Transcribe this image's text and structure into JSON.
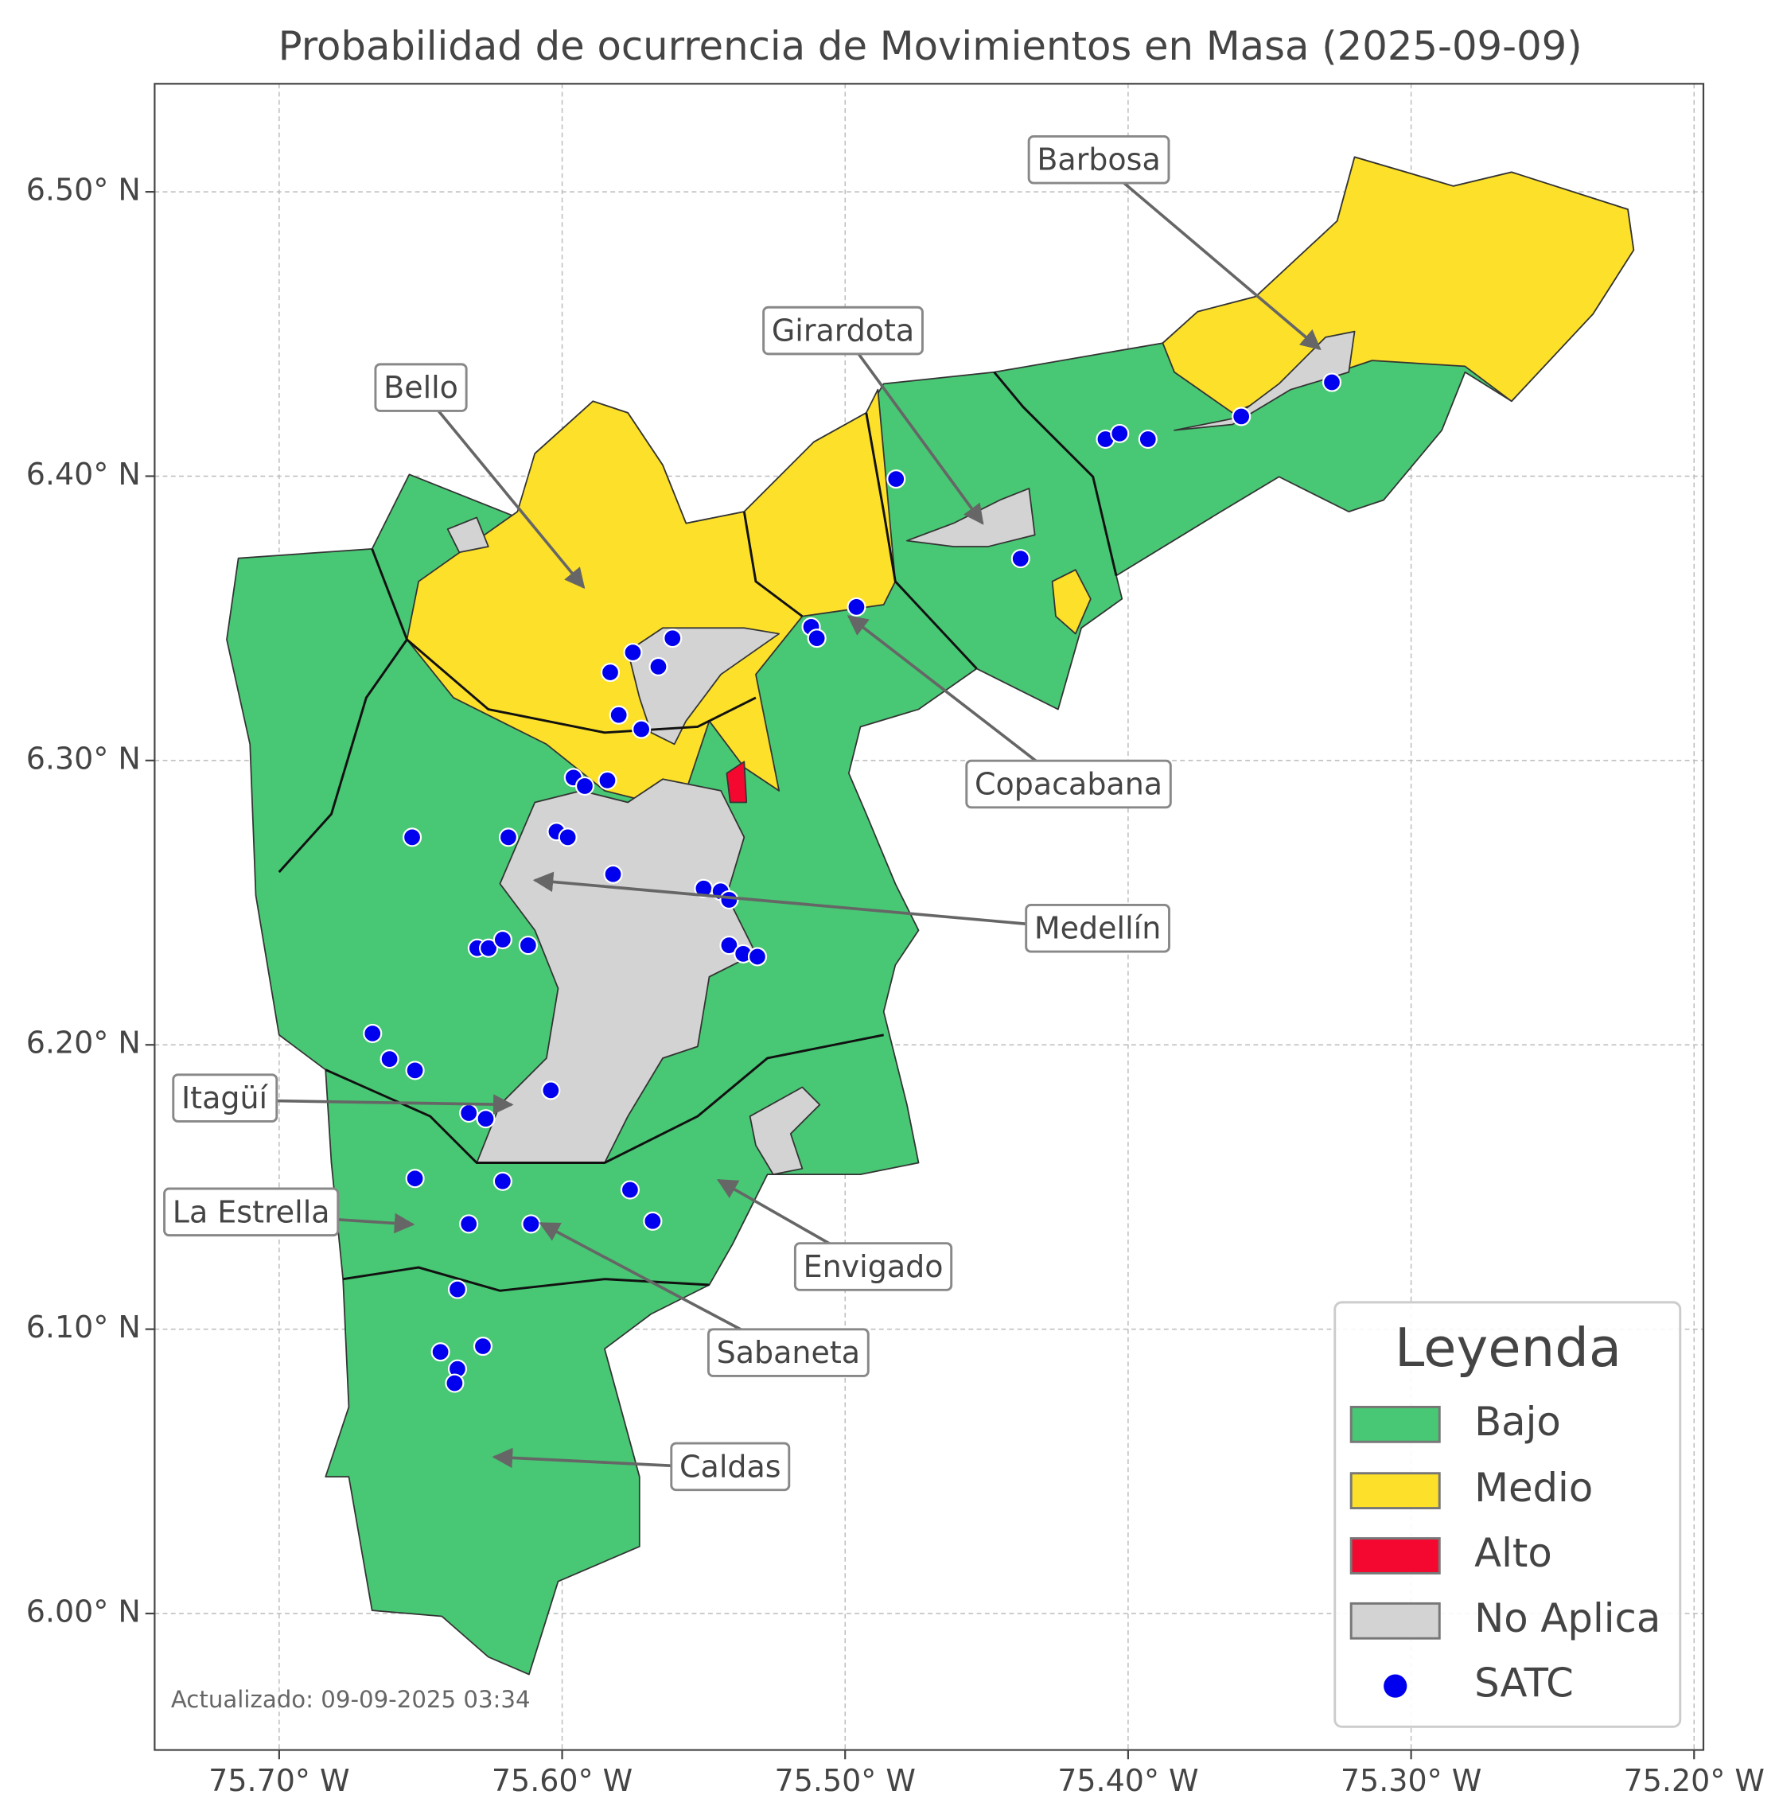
{
  "chart_data": {
    "type": "map",
    "title": "Probabilidad de ocurrencia de Movimientos en Masa (2025-09-09)",
    "xlim": [
      -75.744,
      -75.1967
    ],
    "ylim": [
      5.952,
      6.538
    ],
    "xticks": [
      {
        "value": -75.7,
        "label": "75.70° W"
      },
      {
        "value": -75.6,
        "label": "75.60° W"
      },
      {
        "value": -75.5,
        "label": "75.50° W"
      },
      {
        "value": -75.4,
        "label": "75.40° W"
      },
      {
        "value": -75.3,
        "label": "75.30° W"
      },
      {
        "value": -75.2,
        "label": "75.20° W"
      }
    ],
    "yticks": [
      {
        "value": 6.0,
        "label": "6.00° N"
      },
      {
        "value": 6.1,
        "label": "6.10° N"
      },
      {
        "value": 6.2,
        "label": "6.20° N"
      },
      {
        "value": 6.3,
        "label": "6.30° N"
      },
      {
        "value": 6.4,
        "label": "6.40° N"
      },
      {
        "value": 6.5,
        "label": "6.50° N"
      }
    ],
    "grid": true,
    "legend": {
      "title": "Leyenda",
      "corner": "lower right",
      "entries": [
        {
          "name": "Bajo",
          "color": "#48c774"
        },
        {
          "name": "Medio",
          "color": "#fce029"
        },
        {
          "name": "Alto",
          "color": "#f5082f"
        },
        {
          "name": "No Aplica",
          "color": "#d3d3d3"
        }
      ]
    },
    "series": [
      {
        "name": "SATC",
        "color": "#0000ee",
        "x": [
          -75.482,
          -75.408,
          -75.403,
          -75.393,
          -75.36,
          -75.328,
          -75.438,
          -75.496,
          -75.512,
          -75.51,
          -75.561,
          -75.575,
          -75.583,
          -75.566,
          -75.58,
          -75.572,
          -75.596,
          -75.592,
          -75.584,
          -75.653,
          -75.619,
          -75.602,
          -75.598,
          -75.582,
          -75.55,
          -75.544,
          -75.541,
          -75.541,
          -75.536,
          -75.531,
          -75.63,
          -75.626,
          -75.621,
          -75.612,
          -75.667,
          -75.661,
          -75.652,
          -75.604,
          -75.633,
          -75.627,
          -75.652,
          -75.621,
          -75.576,
          -75.568,
          -75.633,
          -75.611,
          -75.637,
          -75.643,
          -75.628,
          -75.637,
          -75.638
        ],
        "values": [
          6.399,
          6.413,
          6.415,
          6.413,
          6.421,
          6.433,
          6.371,
          6.354,
          6.347,
          6.343,
          6.343,
          6.338,
          6.331,
          6.333,
          6.316,
          6.311,
          6.294,
          6.291,
          6.293,
          6.273,
          6.273,
          6.275,
          6.273,
          6.26,
          6.255,
          6.254,
          6.251,
          6.235,
          6.232,
          6.231,
          6.234,
          6.234,
          6.237,
          6.235,
          6.204,
          6.195,
          6.191,
          6.184,
          6.176,
          6.174,
          6.153,
          6.152,
          6.149,
          6.138,
          6.137,
          6.137,
          6.114,
          6.092,
          6.094,
          6.086,
          6.081
        ]
      }
    ],
    "annotations": [
      "Barbosa",
      "Girardota",
      "Bello",
      "Copacabana",
      "Medellín",
      "Itagüí",
      "La Estrella",
      "Envigado",
      "Sabaneta",
      "Caldas"
    ],
    "footer": "Actualizado: 09-09-2025 03:34"
  }
}
